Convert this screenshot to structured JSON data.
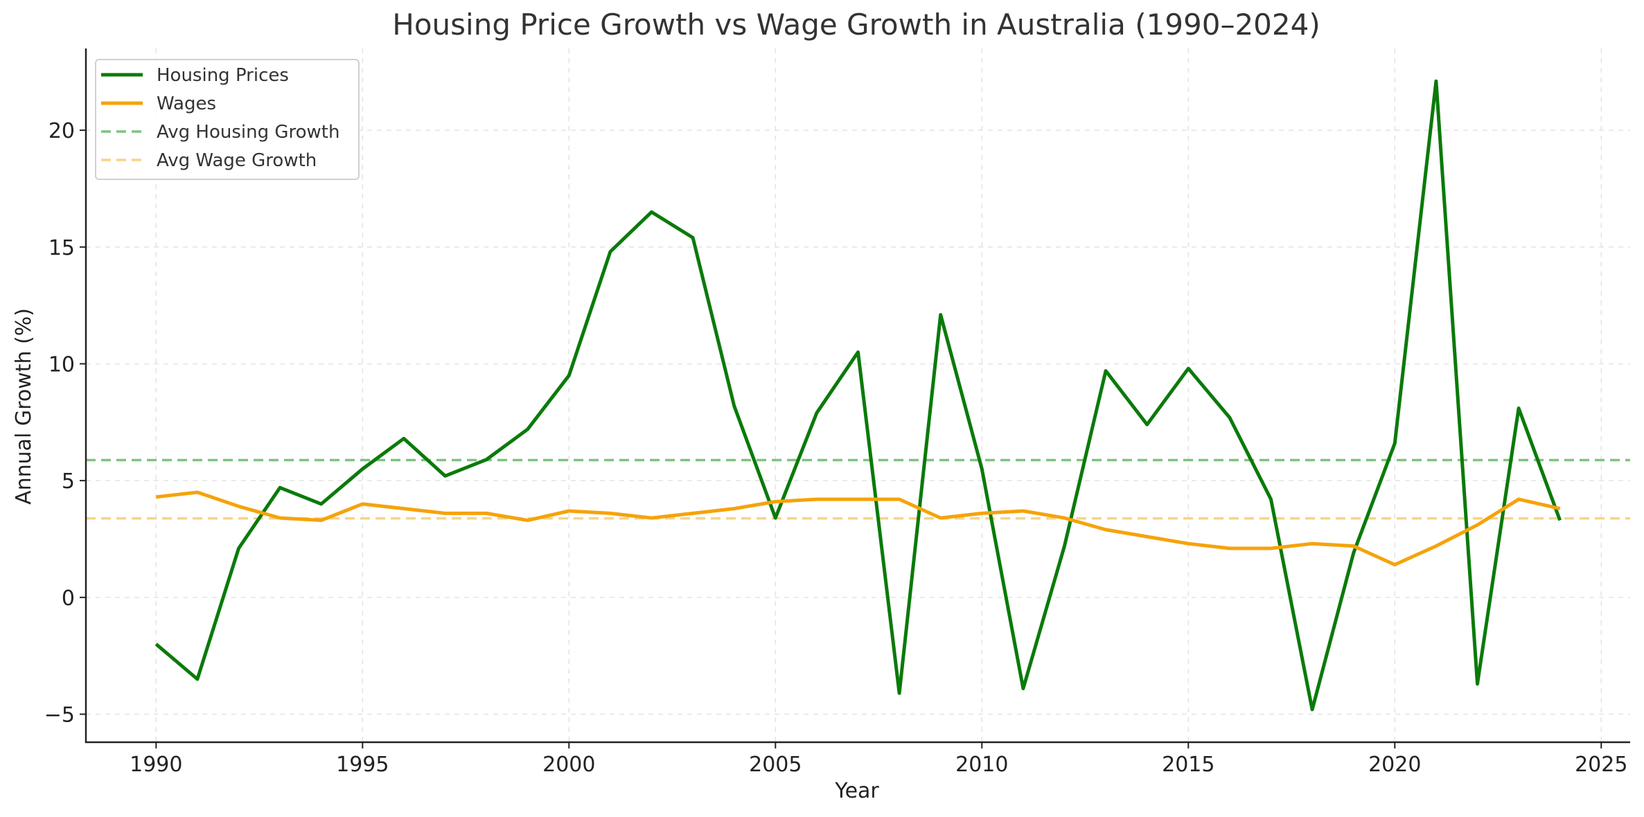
{
  "chart_data": {
    "type": "line",
    "title": "Housing Price Growth vs Wage Growth in Australia (1990–2024)",
    "xlabel": "Year",
    "ylabel": "Annual Growth (%)",
    "xlim": [
      1988.3,
      2025.7
    ],
    "ylim": [
      -6.2,
      23.5
    ],
    "x_ticks": [
      1990,
      1995,
      2000,
      2005,
      2010,
      2015,
      2020,
      2025
    ],
    "x_tick_labels": [
      "1990",
      "1995",
      "2000",
      "2005",
      "2010",
      "2015",
      "2020",
      "2025"
    ],
    "y_ticks": [
      -5,
      0,
      5,
      10,
      15,
      20
    ],
    "y_tick_labels": [
      "−5",
      "0",
      "5",
      "10",
      "15",
      "20"
    ],
    "grid": true,
    "legend_position": "top-left",
    "x": [
      1990,
      1991,
      1992,
      1993,
      1994,
      1995,
      1996,
      1997,
      1998,
      1999,
      2000,
      2001,
      2002,
      2003,
      2004,
      2005,
      2006,
      2007,
      2008,
      2009,
      2010,
      2011,
      2012,
      2013,
      2014,
      2015,
      2016,
      2017,
      2018,
      2019,
      2020,
      2021,
      2022,
      2023,
      2024
    ],
    "series": [
      {
        "name": "Housing Prices",
        "color": "#0a7a0a",
        "style": "solid",
        "values": [
          -2.0,
          -3.5,
          2.1,
          4.7,
          4.0,
          5.5,
          6.8,
          5.2,
          5.9,
          7.2,
          9.5,
          14.8,
          16.5,
          15.4,
          8.2,
          3.4,
          7.9,
          10.5,
          -4.1,
          12.1,
          5.5,
          -3.9,
          2.2,
          9.7,
          7.4,
          9.8,
          7.7,
          4.2,
          -4.8,
          1.9,
          6.6,
          22.1,
          -3.7,
          8.1,
          3.3
        ]
      },
      {
        "name": "Wages",
        "color": "#f5a30a",
        "style": "solid",
        "values": [
          4.3,
          4.5,
          3.9,
          3.4,
          3.3,
          4.0,
          3.8,
          3.6,
          3.6,
          3.3,
          3.7,
          3.6,
          3.4,
          3.6,
          3.8,
          4.1,
          4.2,
          4.2,
          4.2,
          3.4,
          3.6,
          3.7,
          3.4,
          2.9,
          2.6,
          2.3,
          2.1,
          2.1,
          2.3,
          2.2,
          1.4,
          2.2,
          3.1,
          4.2,
          3.8
        ]
      },
      {
        "name": "Avg Housing Growth",
        "color": "#7cc47c",
        "style": "dashed",
        "hline": 5.88
      },
      {
        "name": "Avg Wage Growth",
        "color": "#f7d486",
        "style": "dashed",
        "hline": 3.38
      }
    ]
  }
}
